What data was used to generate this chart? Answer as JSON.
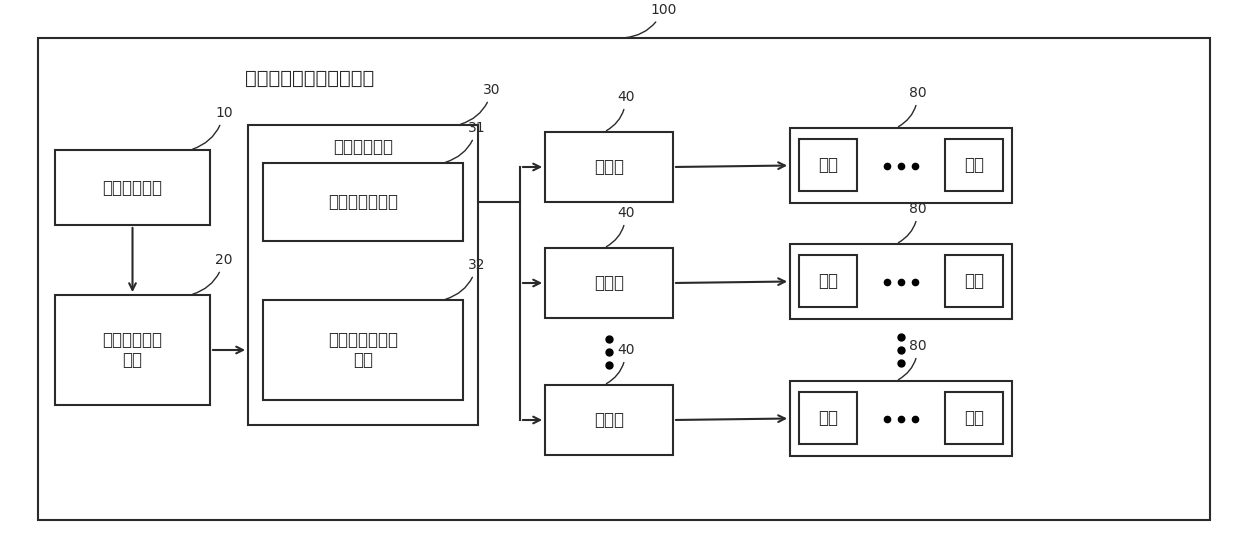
{
  "title": "计算设备的芯片调频装置",
  "label_100": "100",
  "label_10": "10",
  "label_20": "20",
  "label_30": "30",
  "label_31": "31",
  "label_32": "32",
  "label_40": "40",
  "label_80": "80",
  "box10_text": "频点设置模块",
  "box20_text": "计算性能分析\n模块",
  "box30_text": "频率调整模块",
  "box31_text": "频率调整子模块",
  "box32_text": "停止频率调整子\n模块",
  "pll_text": "锁相环",
  "core_text": "内核",
  "bg": "#ffffff",
  "lc": "#2a2a2a",
  "tc": "#2a2a2a",
  "fs": 12,
  "lfs": 10
}
